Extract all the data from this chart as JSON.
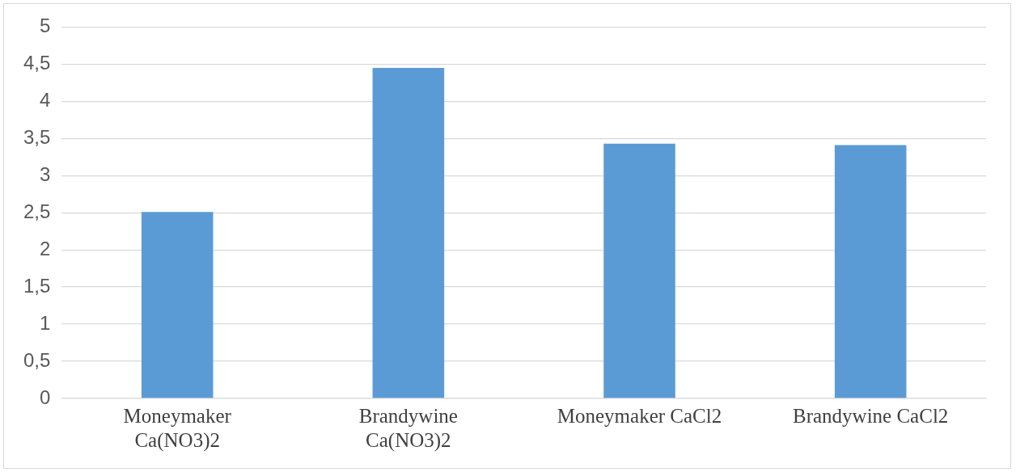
{
  "chart_data": {
    "type": "bar",
    "categories": [
      "Moneymaker Ca(NO3)2",
      "Brandywine Ca(NO3)2",
      "Moneymaker CaCl2",
      "Brandywine CaCl2"
    ],
    "values": [
      2.51,
      4.45,
      3.43,
      3.41
    ],
    "color": "#5b9bd5",
    "ylim": [
      0,
      5
    ],
    "yticks": [
      0,
      {
        "value": 0.5,
        "label": "0,5"
      },
      1,
      {
        "value": 1.5,
        "label": "1,5"
      },
      2,
      {
        "value": 2.5,
        "label": "2,5"
      },
      3,
      {
        "value": 3.5,
        "label": "3,5"
      },
      4,
      {
        "value": 4.5,
        "label": "4,5"
      },
      5
    ],
    "grid": "y",
    "legend": false
  }
}
